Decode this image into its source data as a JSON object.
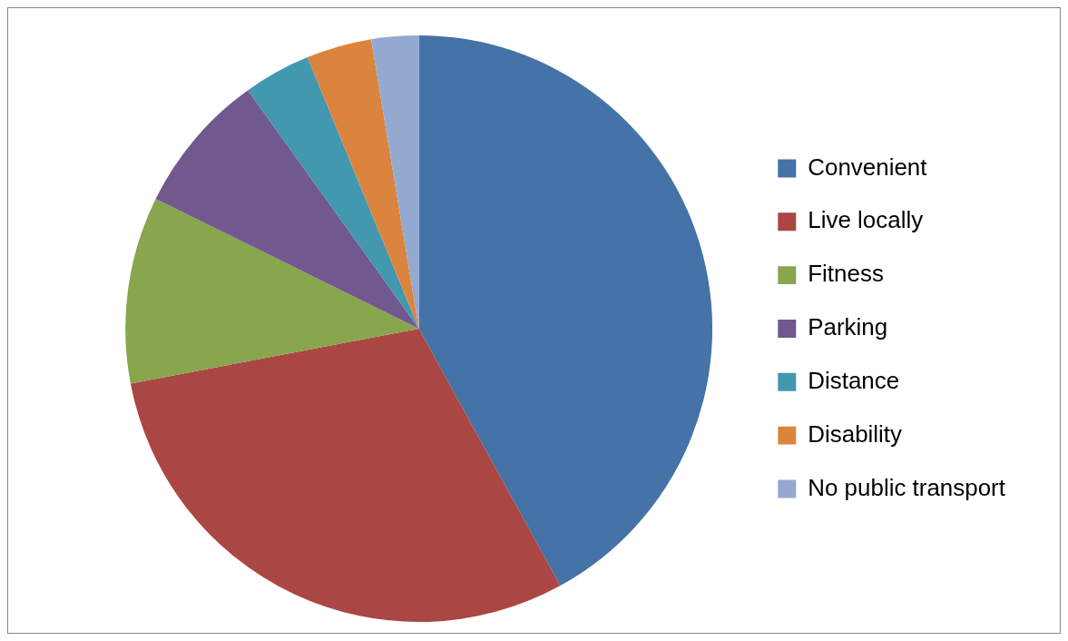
{
  "chart_data": {
    "type": "pie",
    "categories": [
      "Convenient",
      "Live locally",
      "Fitness",
      "Parking",
      "Distance",
      "Disability",
      "No public transport"
    ],
    "values": [
      42,
      30,
      10.3,
      7.8,
      3.7,
      3.6,
      2.6
    ],
    "colors": [
      "#4572a7",
      "#aa4643",
      "#89a54e",
      "#71588f",
      "#4198af",
      "#db843d",
      "#93a9cf"
    ],
    "legend": "right"
  }
}
